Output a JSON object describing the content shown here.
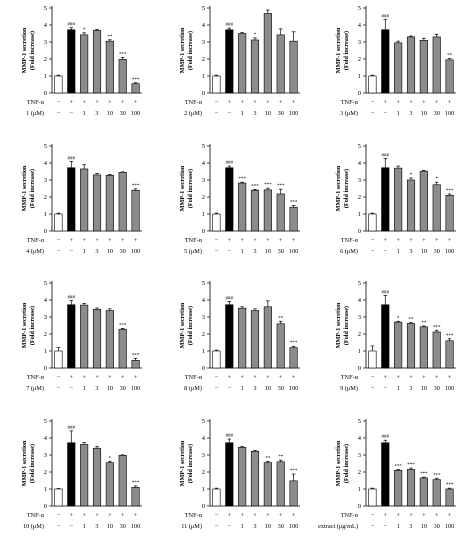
{
  "figure": {
    "ylabel_line1": "MMP-1 secretion",
    "ylabel_line2": "(Fold increase)",
    "row1_label": "TNF-α",
    "tnf_row": [
      "−",
      "+",
      "+",
      "+",
      "+",
      "+",
      "+"
    ],
    "dose_row": [
      "−",
      "−",
      "1",
      "3",
      "10",
      "30",
      "100"
    ]
  },
  "colors": {
    "control": "#ffffff",
    "tnf": "#000000",
    "treated": "#8c8c8c",
    "stroke": "#000000"
  },
  "chart_data": [
    {
      "type": "bar",
      "compound_label": "1 (μM)",
      "ylim": [
        0,
        5
      ],
      "yticks": [
        0,
        1,
        2,
        3,
        4,
        5
      ],
      "values": [
        1.0,
        3.72,
        3.42,
        3.68,
        3.05,
        1.98,
        0.55
      ],
      "errors": [
        0.05,
        0.12,
        0.12,
        0.06,
        0.08,
        0.12,
        0.05
      ],
      "sig": [
        "",
        "###",
        "*",
        "",
        "**",
        "***",
        "***"
      ]
    },
    {
      "type": "bar",
      "compound_label": "2 (μM)",
      "ylim": [
        0,
        5
      ],
      "yticks": [
        0,
        1,
        2,
        3,
        4,
        5
      ],
      "values": [
        1.0,
        3.72,
        3.5,
        3.12,
        4.68,
        3.42,
        3.05
      ],
      "errors": [
        0.05,
        0.1,
        0.05,
        0.12,
        0.2,
        0.35,
        0.55
      ],
      "sig": [
        "",
        "###",
        "",
        "*",
        "",
        "",
        ""
      ]
    },
    {
      "type": "bar",
      "compound_label": "3 (μM)",
      "ylim": [
        0,
        5
      ],
      "yticks": [
        0,
        1,
        2,
        3,
        4,
        5
      ],
      "values": [
        1.0,
        3.72,
        2.95,
        3.3,
        3.1,
        3.3,
        1.95
      ],
      "errors": [
        0.05,
        0.6,
        0.1,
        0.05,
        0.12,
        0.15,
        0.08
      ],
      "sig": [
        "",
        "###",
        "",
        "",
        "",
        "",
        "**"
      ]
    },
    {
      "type": "bar",
      "compound_label": "4 (μM)",
      "ylim": [
        0,
        5
      ],
      "yticks": [
        0,
        1,
        2,
        3,
        4,
        5
      ],
      "values": [
        1.0,
        3.72,
        3.65,
        3.3,
        3.28,
        3.45,
        2.4
      ],
      "errors": [
        0.05,
        0.38,
        0.25,
        0.08,
        0.05,
        0.03,
        0.08
      ],
      "sig": [
        "",
        "###",
        "",
        "",
        "",
        "",
        "***"
      ]
    },
    {
      "type": "bar",
      "compound_label": "5 (μM)",
      "ylim": [
        0,
        5
      ],
      "yticks": [
        0,
        1,
        2,
        3,
        4,
        5
      ],
      "values": [
        1.0,
        3.72,
        2.82,
        2.4,
        2.42,
        2.18,
        1.4
      ],
      "errors": [
        0.05,
        0.1,
        0.05,
        0.05,
        0.1,
        0.28,
        0.1
      ],
      "sig": [
        "",
        "###",
        "***",
        "***",
        "***",
        "***",
        "***"
      ]
    },
    {
      "type": "bar",
      "compound_label": "6 (μM)",
      "ylim": [
        0,
        5
      ],
      "yticks": [
        0,
        1,
        2,
        3,
        4,
        5
      ],
      "values": [
        1.0,
        3.72,
        3.7,
        3.0,
        3.52,
        2.72,
        2.1
      ],
      "errors": [
        0.05,
        0.55,
        0.12,
        0.12,
        0.05,
        0.15,
        0.08
      ],
      "sig": [
        "",
        "###",
        "",
        "*",
        "",
        "*",
        "***"
      ]
    },
    {
      "type": "bar",
      "compound_label": "7 (μM)",
      "ylim": [
        0,
        5
      ],
      "yticks": [
        0,
        1,
        2,
        3,
        4,
        5
      ],
      "values": [
        1.0,
        3.72,
        3.7,
        3.45,
        3.38,
        2.28,
        0.45
      ],
      "errors": [
        0.2,
        0.25,
        0.1,
        0.08,
        0.1,
        0.05,
        0.12
      ],
      "sig": [
        "",
        "###",
        "",
        "",
        "",
        "***",
        "***"
      ]
    },
    {
      "type": "bar",
      "compound_label": "8 (μM)",
      "ylim": [
        0,
        5
      ],
      "yticks": [
        0,
        1,
        2,
        3,
        4,
        5
      ],
      "values": [
        1.0,
        3.72,
        3.52,
        3.38,
        3.6,
        2.6,
        1.2
      ],
      "errors": [
        0.05,
        0.2,
        0.08,
        0.1,
        0.35,
        0.15,
        0.08
      ],
      "sig": [
        "",
        "###",
        "",
        "",
        "",
        "**",
        "***"
      ]
    },
    {
      "type": "bar",
      "compound_label": "9 (μM)",
      "ylim": [
        0,
        5
      ],
      "yticks": [
        0,
        1,
        2,
        3,
        4,
        5
      ],
      "values": [
        1.0,
        3.72,
        2.7,
        2.62,
        2.42,
        2.12,
        1.6
      ],
      "errors": [
        0.3,
        0.55,
        0.05,
        0.05,
        0.05,
        0.1,
        0.12
      ],
      "sig": [
        "",
        "###",
        "*",
        "**",
        "**",
        "***",
        "***"
      ]
    },
    {
      "type": "bar",
      "compound_label": "10 (μM)",
      "ylim": [
        0,
        5
      ],
      "yticks": [
        0,
        1,
        2,
        3,
        4,
        5
      ],
      "values": [
        1.0,
        3.72,
        3.62,
        3.4,
        2.55,
        2.98,
        1.1
      ],
      "errors": [
        0.03,
        0.7,
        0.12,
        0.1,
        0.08,
        0.03,
        0.08
      ],
      "sig": [
        "",
        "###",
        "",
        "",
        "*",
        "",
        "***"
      ]
    },
    {
      "type": "bar",
      "compound_label": "11 (μM)",
      "ylim": [
        0,
        5
      ],
      "yticks": [
        0,
        1,
        2,
        3,
        4,
        5
      ],
      "values": [
        1.0,
        3.72,
        3.45,
        3.22,
        2.55,
        2.6,
        1.48
      ],
      "errors": [
        0.05,
        0.22,
        0.05,
        0.05,
        0.08,
        0.1,
        0.4
      ],
      "sig": [
        "",
        "###",
        "",
        "",
        "**",
        "**",
        "***"
      ]
    },
    {
      "type": "bar",
      "compound_label": "extract (μg/mL)",
      "ylim": [
        0,
        5
      ],
      "yticks": [
        0,
        1,
        2,
        3,
        4,
        5
      ],
      "values": [
        1.0,
        3.72,
        2.1,
        2.15,
        1.65,
        1.55,
        1.0
      ],
      "errors": [
        0.05,
        0.15,
        0.05,
        0.08,
        0.05,
        0.08,
        0.05
      ],
      "sig": [
        "",
        "###",
        "***",
        "***",
        "***",
        "***",
        "***"
      ]
    }
  ]
}
